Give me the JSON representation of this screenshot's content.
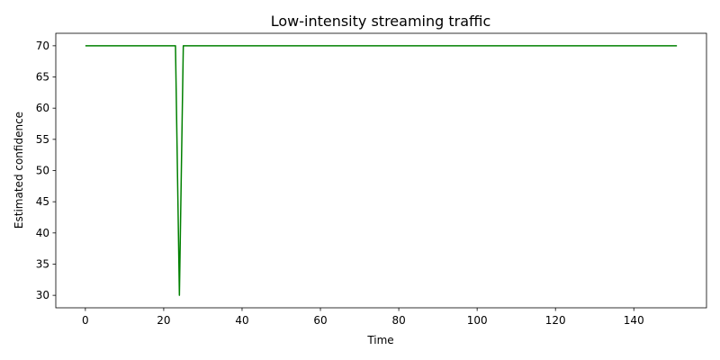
{
  "chart_data": {
    "type": "line",
    "title": "Low-intensity streaming traffic",
    "xlabel": "Time",
    "ylabel": "Estimated confidence",
    "xlim": [
      -7.55,
      158.55
    ],
    "ylim": [
      28,
      72
    ],
    "xticks": [
      0,
      20,
      40,
      60,
      80,
      100,
      120,
      140
    ],
    "yticks": [
      30,
      35,
      40,
      45,
      50,
      55,
      60,
      65,
      70
    ],
    "grid": false,
    "legend": "none",
    "series": [
      {
        "color": "#008000",
        "x": [
          0,
          23,
          24,
          25,
          151
        ],
        "y": [
          70,
          70,
          30,
          70,
          70
        ]
      }
    ]
  }
}
